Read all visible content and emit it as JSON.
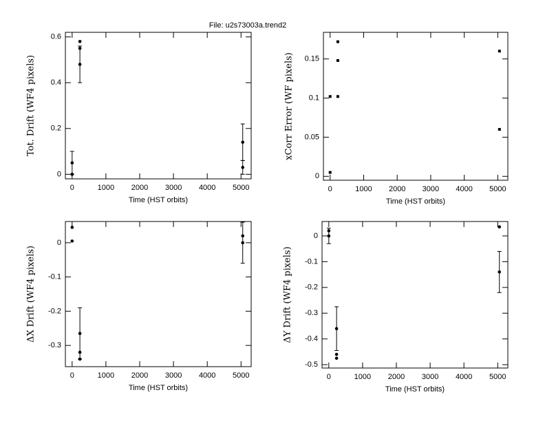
{
  "title": "File: u2s73003a.trend2",
  "chart_data": [
    {
      "type": "scatter",
      "marker": "circle",
      "color": "#000000",
      "xlabel": "Time (HST orbits)",
      "ylabel": "Tot. Drift (WF4 pixels)",
      "x": [
        0,
        0,
        230,
        230,
        230,
        5050,
        5050
      ],
      "values": [
        0.05,
        0.0,
        0.58,
        0.55,
        0.48,
        0.14,
        0.03
      ],
      "errors": [
        0.05,
        null,
        null,
        null,
        0.08,
        0.08,
        0.03
      ],
      "xlim": [
        -200,
        5300
      ],
      "ylim": [
        -0.02,
        0.62
      ],
      "xticks": [
        0,
        1000,
        2000,
        3000,
        4000,
        5000
      ],
      "yticks": [
        0,
        0.2,
        0.4,
        0.6
      ]
    },
    {
      "type": "scatter",
      "marker": "square",
      "color": "#000000",
      "xlabel": "Time (HST orbits)",
      "ylabel": "xCorr Error (WF pixels)",
      "x": [
        0,
        0,
        230,
        230,
        230,
        5050,
        5050
      ],
      "values": [
        0.102,
        0.005,
        0.172,
        0.148,
        0.102,
        0.16,
        0.06
      ],
      "xlim": [
        -200,
        5300
      ],
      "ylim": [
        -0.005,
        0.184
      ],
      "xticks": [
        0,
        1000,
        2000,
        3000,
        4000,
        5000
      ],
      "yticks": [
        0,
        0.05,
        0.1,
        0.15
      ]
    },
    {
      "type": "scatter",
      "marker": "circle",
      "color": "#000000",
      "xlabel": "Time (HST orbits)",
      "ylabel": "ΔX Drift (WF4 pixels)",
      "x": [
        0,
        0,
        230,
        230,
        230,
        5050,
        5050
      ],
      "values": [
        0.045,
        0.005,
        -0.265,
        -0.32,
        -0.34,
        0.02,
        0.0
      ],
      "errors": [
        null,
        null,
        0.075,
        null,
        null,
        null,
        0.06
      ],
      "xlim": [
        -200,
        5300
      ],
      "ylim": [
        -0.362,
        0.062
      ],
      "xticks": [
        0,
        1000,
        2000,
        3000,
        4000,
        5000
      ],
      "yticks": [
        0,
        -0.1,
        -0.2,
        -0.3
      ]
    },
    {
      "type": "scatter",
      "marker": "circle",
      "color": "#000000",
      "xlabel": "Time (HST orbits)",
      "ylabel": "ΔY Drift (WF4 pixels)",
      "x": [
        0,
        0,
        230,
        230,
        230,
        5050,
        5050
      ],
      "values": [
        0.02,
        0.0,
        -0.36,
        -0.46,
        -0.475,
        0.035,
        -0.14
      ],
      "errors": [
        null,
        0.03,
        0.085,
        null,
        null,
        null,
        0.08
      ],
      "xlim": [
        -200,
        5300
      ],
      "ylim": [
        -0.513,
        0.056
      ],
      "xticks": [
        0,
        1000,
        2000,
        3000,
        4000,
        5000
      ],
      "yticks": [
        0,
        -0.1,
        -0.2,
        -0.3,
        -0.4,
        -0.5
      ]
    }
  ]
}
